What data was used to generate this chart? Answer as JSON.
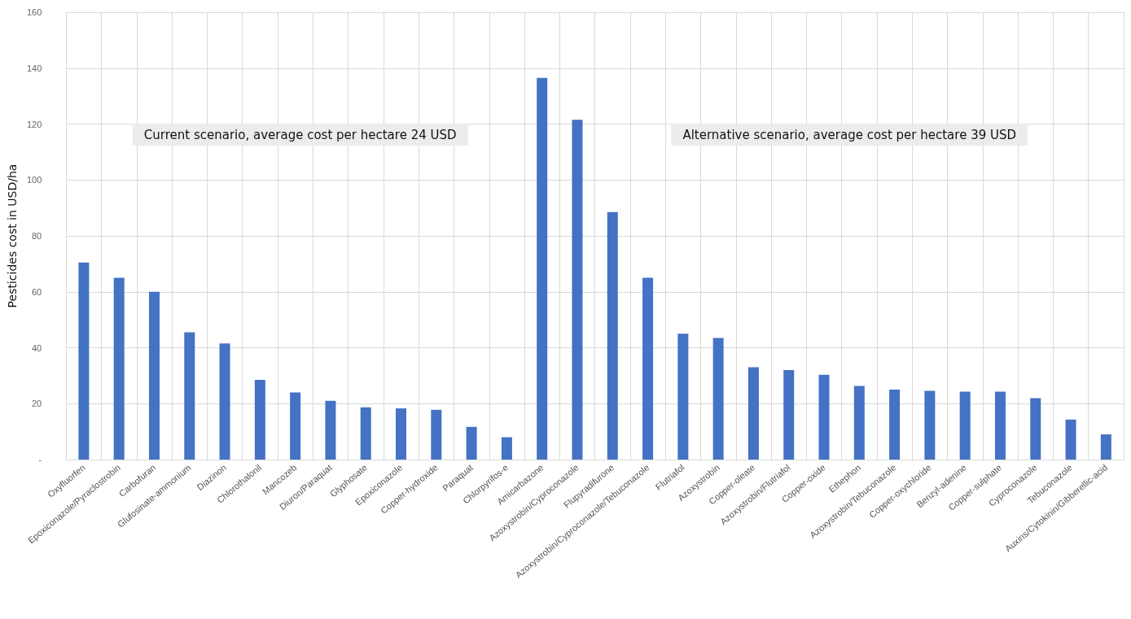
{
  "chart_data": {
    "type": "bar",
    "ylabel": "Pesticides cost in USD/ha",
    "categories": [
      "Oxyfluorfen",
      "Epoxiconazole/Pyraclostrobin",
      "Carbofuran",
      "Glufosinate-ammonium",
      "Diazinon",
      "Chlorothalonil",
      "Mancozeb",
      "Diuron/Paraquat",
      "Glyphosate",
      "Epoxiconazole",
      "Copper-hydroxide",
      "Paraquat",
      "Chlorpyrifos-e",
      "Amicarbazone",
      "Azoxystrobin/Cyproconazole",
      "Flupyradifurone",
      "Azoxystrobin/Cyproconazole/Tebuconazole",
      "Flutriafol",
      "Azoxystrobin",
      "Copper-oleate",
      "Azoxystrobin/Flutriafol",
      "Copper-oxide",
      "Ethephon",
      "Azoxystrobin/Tebuconazole",
      "Copper-oxychloride",
      "Benzyl-adenine",
      "Copper-sulphate",
      "Cyproconazole",
      "Tebuconazole",
      "Auxins/Cytokinin/Gibberellic-acid"
    ],
    "values": [
      70.5,
      65,
      60,
      45.5,
      41.5,
      28.5,
      24,
      21,
      18.7,
      18.3,
      17.8,
      11.7,
      8,
      136.5,
      121.5,
      88.5,
      65,
      45,
      43.5,
      33,
      32,
      30.3,
      26.3,
      25,
      24.6,
      24.3,
      24.3,
      22,
      14.3,
      9
    ],
    "color": "#4472c4",
    "ylim": [
      0,
      160
    ],
    "yticks": [
      {
        "value": 0,
        "label": "-"
      },
      20,
      40,
      60,
      80,
      100,
      120,
      140,
      160
    ],
    "grid": true,
    "annotations": [
      "Current scenario, average cost per hectare 24 USD",
      "Alternative scenario, average cost per hectare 39 USD"
    ]
  }
}
